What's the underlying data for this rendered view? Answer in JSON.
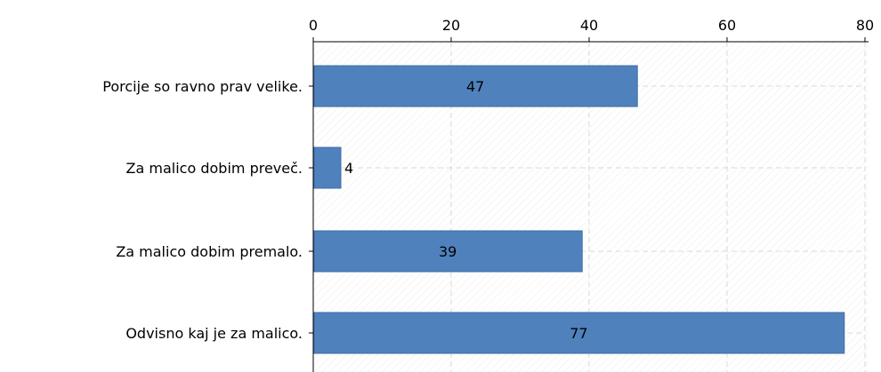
{
  "chart_data": {
    "type": "bar",
    "orientation": "horizontal",
    "categories": [
      "Porcije so ravno prav velike.",
      "Za malico dobim preveč.",
      "Za malico dobim premalo.",
      "Odvisno kaj je za malico."
    ],
    "values": [
      47,
      4,
      39,
      77
    ],
    "data_labels": [
      "47",
      "4",
      "39",
      "77"
    ],
    "xlim": [
      0,
      80
    ],
    "x_ticks": [
      0,
      20,
      40,
      60,
      80
    ],
    "x_tick_labels": [
      "0",
      "20",
      "40",
      "60",
      "80"
    ],
    "x_axis_position": "top",
    "grid": true,
    "legend": "none",
    "title": "",
    "xlabel": "",
    "ylabel": "",
    "colors": {
      "bar": "#4f81bd",
      "bar_edge": "#3d6da6",
      "axis": "#000000",
      "grid": "#d8d8d8",
      "hatch": "#e6e6e6"
    }
  }
}
